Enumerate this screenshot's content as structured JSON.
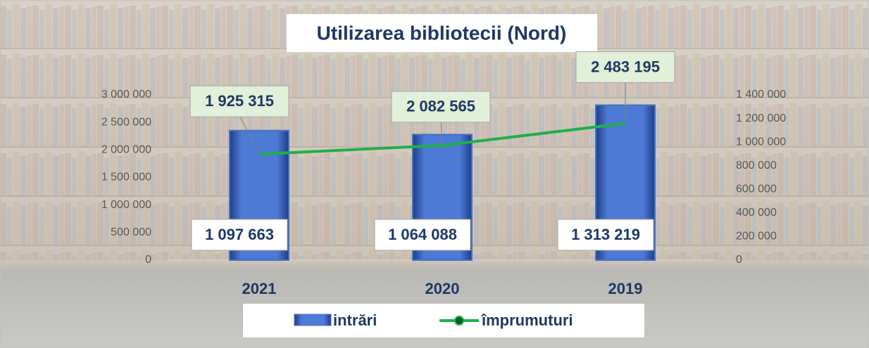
{
  "chart_data": {
    "type": "bar-line",
    "title": "Utilizarea bibliotecii (Nord)",
    "categories": [
      "2021",
      "2020",
      "2019"
    ],
    "series": [
      {
        "name": "intrări",
        "type": "bar",
        "axis": "y2",
        "color": "#4472c4",
        "values": [
          1097663,
          1064088,
          1313219
        ],
        "value_labels": [
          "1 097 663",
          "1 064 088",
          "1 313 219"
        ]
      },
      {
        "name": "împrumuturi",
        "type": "line",
        "axis": "y",
        "color": "#1fb04b",
        "values": [
          1925315,
          2082565,
          2483195
        ],
        "value_labels": [
          "1 925 315",
          "2 082 565",
          "2 483 195"
        ]
      }
    ],
    "ylim": [
      0,
      3000000
    ],
    "yticks": [
      0,
      {
        "value": 500000,
        "label": "500 000"
      },
      {
        "value": 1000000,
        "label": "1 000 000"
      },
      {
        "value": 1500000,
        "label": "1 500 000"
      },
      {
        "value": 2000000,
        "label": "2 000 000"
      },
      {
        "value": 2500000,
        "label": "2 500 000"
      },
      {
        "value": 3000000,
        "label": "3 000 000"
      }
    ],
    "y2lim": [
      0,
      1400000
    ],
    "y2ticks": [
      0,
      {
        "value": 200000,
        "label": "200 000"
      },
      {
        "value": 400000,
        "label": "400 000"
      },
      {
        "value": 600000,
        "label": "600 000"
      },
      {
        "value": 800000,
        "label": "800 000"
      },
      {
        "value": 1000000,
        "label": "1 000 000"
      },
      {
        "value": 1200000,
        "label": "1 200 000"
      },
      {
        "value": 1400000,
        "label": "1 400 000"
      }
    ],
    "grid": false,
    "legend": "bottom"
  }
}
